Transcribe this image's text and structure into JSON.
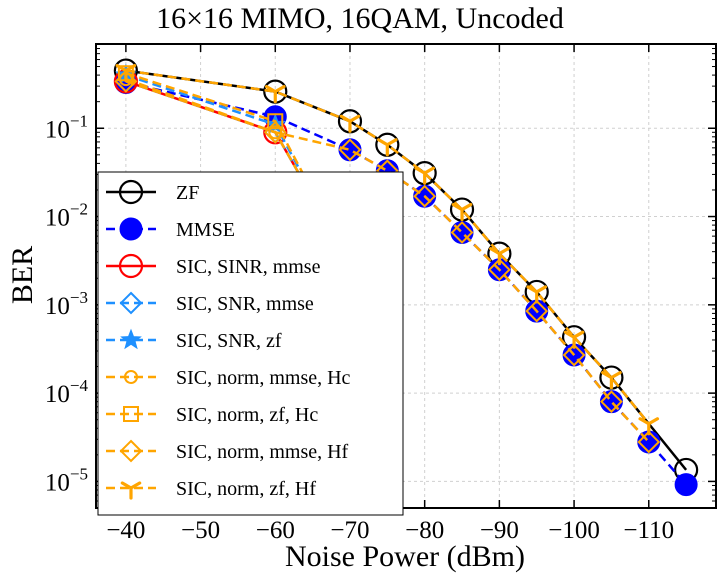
{
  "chart_data": {
    "type": "line",
    "title": "16×16 MIMO, 16QAM, Uncoded",
    "xlabel": "Noise Power (dBm)",
    "ylabel": "BER",
    "x_axis": {
      "reversed": true,
      "lim": [
        -36,
        -119
      ],
      "ticks": [
        -40,
        -50,
        -60,
        -70,
        -80,
        -90,
        -100,
        -110
      ],
      "tick_labels": [
        "−40",
        "−50",
        "−60",
        "−70",
        "−80",
        "−90",
        "−100",
        "−110"
      ]
    },
    "y_axis": {
      "scale": "log",
      "lim": [
        5e-06,
        0.9
      ],
      "ticks": [
        1e-05,
        0.0001,
        0.001,
        0.01,
        0.1
      ],
      "tick_exponents": [
        "−5",
        "−4",
        "−3",
        "−2",
        "−1"
      ],
      "tick_base": "10"
    },
    "grid": true,
    "legend_position": "left",
    "series": [
      {
        "name": "ZF",
        "color": "#000000",
        "dash": "solid",
        "marker": "circle-open",
        "x": [
          -40,
          -60,
          -70,
          -75,
          -80,
          -85,
          -90,
          -95,
          -100,
          -105,
          -115
        ],
        "y": [
          0.45,
          0.26,
          0.12,
          0.065,
          0.031,
          0.012,
          0.0038,
          0.0014,
          0.00043,
          0.00015,
          1.35e-05
        ]
      },
      {
        "name": "MMSE",
        "color": "#0000ff",
        "dash": "dashed",
        "marker": "circle-filled",
        "x": [
          -40,
          -60,
          -70,
          -75,
          -80,
          -85,
          -90,
          -95,
          -100,
          -105,
          -110,
          -115
        ],
        "y": [
          0.33,
          0.135,
          0.057,
          0.033,
          0.017,
          0.0066,
          0.0025,
          0.00085,
          0.00027,
          8e-05,
          2.8e-05,
          9.2e-06
        ]
      },
      {
        "name": "SIC, SINR, mmse",
        "color": "#ff0000",
        "dash": "solid",
        "marker": "circle-open",
        "x": [
          -40,
          -60,
          -70,
          -75
        ],
        "y": [
          0.34,
          0.09,
          0.003,
          6e-05
        ]
      },
      {
        "name": "SIC, SNR, mmse",
        "color": "#1e90ff",
        "dash": "dashed",
        "marker": "diamond-open",
        "x": [
          -40,
          -60,
          -70,
          -75
        ],
        "y": [
          0.34,
          0.09,
          0.003,
          6e-05
        ]
      },
      {
        "name": "SIC, SNR, zf",
        "color": "#1e90ff",
        "dash": "dashed",
        "marker": "star",
        "x": [
          -40,
          -60,
          -70,
          -75
        ],
        "y": [
          0.4,
          0.11,
          0.003,
          0.00017
        ]
      },
      {
        "name": "SIC, norm, mmse, Hc",
        "color": "#ffa500",
        "dash": "dashed",
        "marker": "circle-small",
        "x": [
          -40,
          -60,
          -70,
          -75
        ],
        "y": [
          0.36,
          0.09,
          0.003,
          6e-05
        ]
      },
      {
        "name": "SIC, norm, zf, Hc",
        "color": "#ffa500",
        "dash": "dashed",
        "marker": "square-open",
        "x": [
          -40,
          -60,
          -70,
          -76
        ],
        "y": [
          0.42,
          0.12,
          0.003,
          0.00035
        ]
      },
      {
        "name": "SIC, norm, mmse, Hf",
        "color": "#ffa500",
        "dash": "dashed",
        "marker": "diamond-open",
        "x": [
          -40,
          -60,
          -70,
          -75,
          -80,
          -85,
          -90,
          -95,
          -100,
          -105,
          -110
        ],
        "y": [
          0.34,
          0.09,
          0.057,
          0.033,
          0.017,
          0.0066,
          0.0025,
          0.00085,
          0.00027,
          8e-05,
          2.8e-05
        ]
      },
      {
        "name": "SIC, norm, zf, Hf",
        "color": "#ffa500",
        "dash": "dashed",
        "marker": "tri",
        "x": [
          -40,
          -60,
          -70,
          -75,
          -80,
          -85,
          -90,
          -95,
          -100,
          -105,
          -110
        ],
        "y": [
          0.45,
          0.26,
          0.12,
          0.065,
          0.031,
          0.012,
          0.0038,
          0.0014,
          0.00043,
          0.00015,
          4.5e-05
        ]
      }
    ]
  }
}
